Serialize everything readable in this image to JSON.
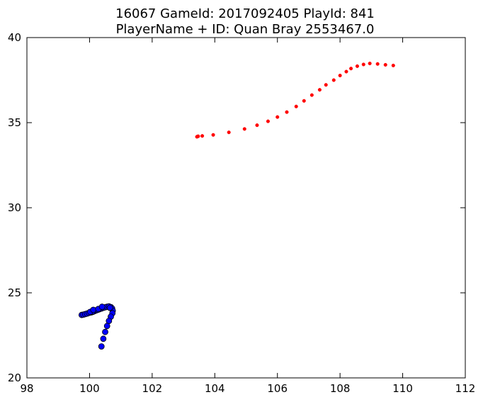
{
  "chart_data": {
    "type": "scatter",
    "title": "16067 GameId: 2017092405 PlayId: 841",
    "subtitle": "PlayerName + ID: Quan Bray 2553467.0",
    "xlabel": "",
    "ylabel": "",
    "xlim": [
      98,
      112
    ],
    "ylim": [
      20,
      40
    ],
    "x_ticks": [
      98,
      100,
      102,
      104,
      106,
      108,
      110,
      112
    ],
    "y_ticks": [
      20,
      25,
      30,
      35,
      40
    ],
    "grid": false,
    "legend": "none",
    "series": [
      {
        "color": "#0000ff",
        "edge_color": "#000000",
        "marker": "circle-large",
        "points": [
          [
            99.75,
            23.7
          ],
          [
            99.8,
            23.72
          ],
          [
            99.86,
            23.75
          ],
          [
            99.92,
            23.78
          ],
          [
            99.98,
            23.82
          ],
          [
            100.05,
            23.85
          ],
          [
            100.1,
            23.88
          ],
          [
            100.15,
            23.92
          ],
          [
            100.2,
            23.96
          ],
          [
            100.26,
            24.0
          ],
          [
            100.32,
            24.04
          ],
          [
            100.38,
            24.08
          ],
          [
            100.44,
            24.12
          ],
          [
            100.5,
            24.15
          ],
          [
            100.56,
            24.18
          ],
          [
            100.62,
            24.2
          ],
          [
            100.68,
            24.16
          ],
          [
            100.72,
            24.08
          ],
          [
            100.74,
            23.95
          ],
          [
            100.73,
            23.8
          ],
          [
            100.68,
            23.6
          ],
          [
            100.62,
            23.35
          ],
          [
            100.56,
            23.05
          ],
          [
            100.5,
            22.7
          ],
          [
            100.44,
            22.3
          ],
          [
            100.38,
            21.85
          ],
          [
            100.1,
            23.9
          ],
          [
            100.02,
            23.88
          ],
          [
            100.12,
            24.0
          ],
          [
            100.28,
            24.05
          ],
          [
            100.4,
            24.18
          ],
          [
            100.65,
            24.12
          ]
        ]
      },
      {
        "color": "#ff0000",
        "edge_color": "#ff0000",
        "marker": "circle-small",
        "points": [
          [
            103.43,
            34.17
          ],
          [
            103.45,
            34.19
          ],
          [
            103.47,
            34.2
          ],
          [
            103.6,
            34.22
          ],
          [
            103.95,
            34.28
          ],
          [
            104.45,
            34.43
          ],
          [
            104.95,
            34.63
          ],
          [
            105.35,
            34.85
          ],
          [
            105.7,
            35.08
          ],
          [
            106.0,
            35.33
          ],
          [
            106.3,
            35.62
          ],
          [
            106.6,
            35.95
          ],
          [
            106.85,
            36.28
          ],
          [
            107.1,
            36.62
          ],
          [
            107.35,
            36.93
          ],
          [
            107.55,
            37.22
          ],
          [
            107.8,
            37.5
          ],
          [
            108.0,
            37.77
          ],
          [
            108.2,
            38.0
          ],
          [
            108.35,
            38.18
          ],
          [
            108.55,
            38.32
          ],
          [
            108.75,
            38.42
          ],
          [
            108.95,
            38.48
          ],
          [
            109.2,
            38.45
          ],
          [
            109.45,
            38.4
          ],
          [
            109.7,
            38.36
          ]
        ]
      }
    ]
  }
}
